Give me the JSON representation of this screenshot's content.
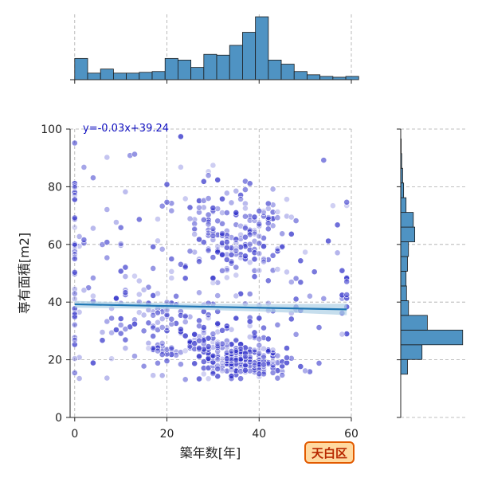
{
  "chart_data": {
    "type": "scatter",
    "title": "",
    "xlabel": "築年数[年]",
    "ylabel": "専有面積[m2]",
    "xlim": [
      -1,
      60
    ],
    "ylim": [
      0,
      100
    ],
    "x_ticks": [
      0,
      20,
      40,
      60
    ],
    "y_ticks": [
      0,
      20,
      40,
      60,
      80,
      100
    ],
    "grid": true,
    "regression": {
      "equation": "y=-0.03x+39.24",
      "slope": -0.03,
      "intercept": 39.24,
      "color": "#1f77b4",
      "band_color": "#aed0e6"
    },
    "point_color": "#2b2bc8",
    "badge": {
      "text": "天白区",
      "fill": "#ffd9a0",
      "border": "#e25a00",
      "text_color": "#b82800"
    },
    "x_histogram": {
      "bin_start": 0,
      "bin_width": 2.8,
      "counts": [
        26,
        8,
        13,
        8,
        8,
        9,
        10,
        26,
        24,
        15,
        31,
        30,
        42,
        58,
        77,
        24,
        19,
        10,
        6,
        4,
        3,
        4
      ]
    },
    "y_histogram": {
      "bin_start": 15,
      "bin_width": 5.1,
      "counts": [
        14,
        44,
        128,
        55,
        16,
        12,
        11,
        14,
        16,
        29,
        26,
        11,
        6,
        4,
        2,
        1
      ]
    },
    "clusters": [
      {
        "cx": 37,
        "cy": 20,
        "sx": 4.5,
        "sy": 3.2,
        "n": 150
      },
      {
        "cx": 29,
        "cy": 25,
        "sx": 6.5,
        "sy": 4.5,
        "n": 90
      },
      {
        "cx": 35,
        "cy": 63,
        "sx": 5.5,
        "sy": 7,
        "n": 140
      },
      {
        "cx": 20,
        "cy": 30,
        "sx": 9,
        "sy": 9,
        "n": 90
      },
      {
        "cx": 12,
        "cy": 45,
        "sx": 8,
        "sy": 15,
        "n": 60
      },
      {
        "cx": 45,
        "cy": 45,
        "sx": 8,
        "sy": 18,
        "n": 70
      },
      {
        "cx": 0,
        "cy": 55,
        "sx": 0.4,
        "sy": 22,
        "n": 30
      },
      {
        "cx": 58,
        "cy": 42,
        "sx": 1,
        "sy": 9,
        "n": 10
      },
      {
        "cx": 25,
        "cy": 70,
        "sx": 14,
        "sy": 14,
        "n": 50
      }
    ]
  }
}
